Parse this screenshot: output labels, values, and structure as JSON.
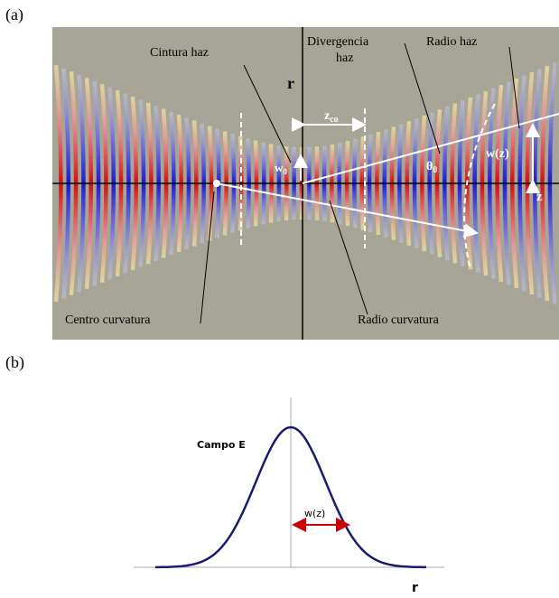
{
  "panel_a": {
    "label": "(a)",
    "annotations": {
      "waist": "Cintura haz",
      "divergence": [
        "Divergencia",
        "haz"
      ],
      "radius": "Radio haz",
      "center": "Centro curvatura",
      "curvature": "Radio curvatura"
    },
    "symbols": {
      "r": "r",
      "zco": {
        "text": "z",
        "sub": "co"
      },
      "w0": {
        "text": "w",
        "sub": "0"
      },
      "theta0": {
        "text": "θ",
        "sub": "0"
      },
      "wz": "w(z)",
      "z": "z"
    }
  },
  "panel_b": {
    "label": "(b)",
    "field": "Campo E",
    "width": "w(z)",
    "axis": "r"
  }
}
